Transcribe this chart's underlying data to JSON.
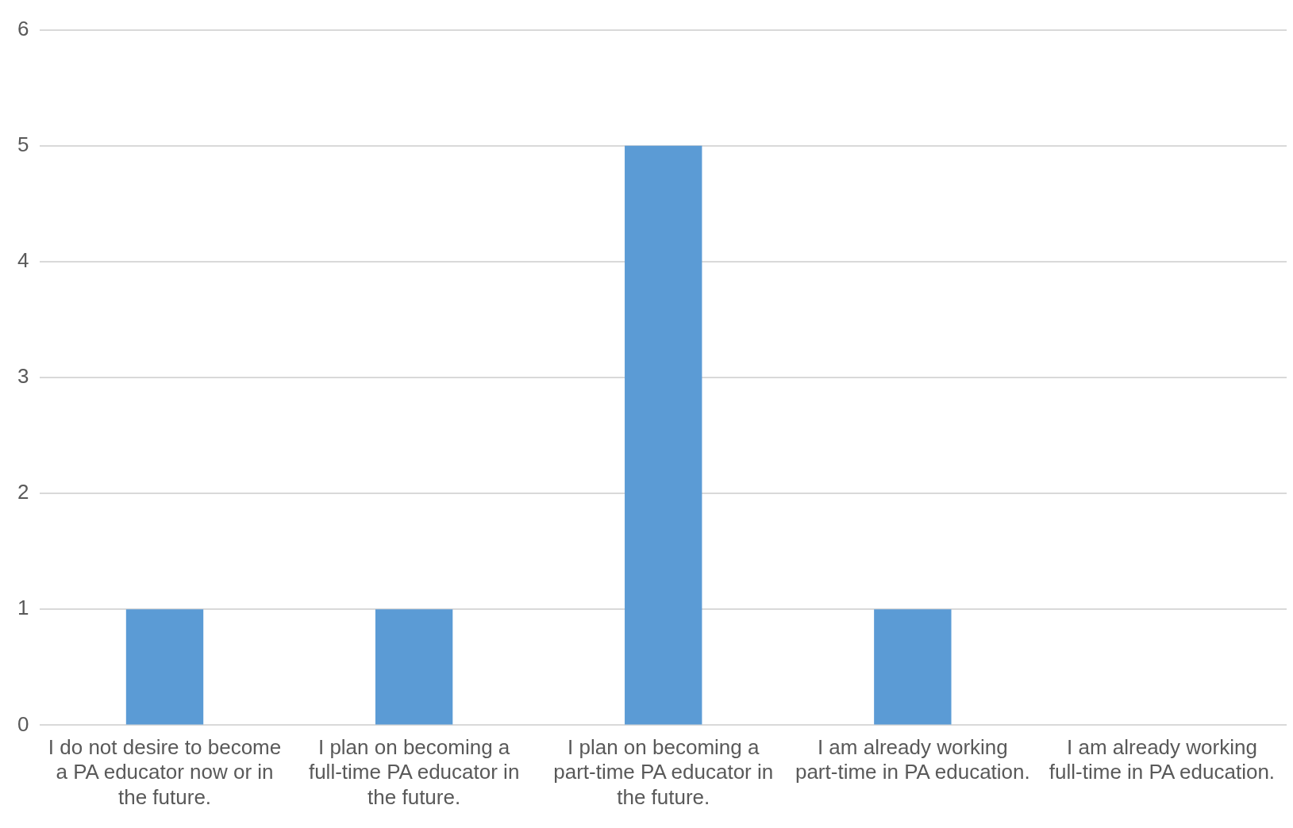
{
  "chart_data": {
    "type": "bar",
    "categories": [
      "I do not desire to become a PA educator now or in the future.",
      "I plan on becoming a full-time PA educator in the future.",
      "I plan on becoming a part-time PA educator in the future.",
      "I am already working part-time in PA education.",
      "I am already working full-time in PA education."
    ],
    "values": [
      1,
      1,
      5,
      1,
      0
    ],
    "color": "#5b9bd5",
    "ylim": [
      0,
      6
    ],
    "yticks": [
      0,
      1,
      2,
      3,
      4,
      5,
      6
    ],
    "grid": "y",
    "legend": false
  }
}
